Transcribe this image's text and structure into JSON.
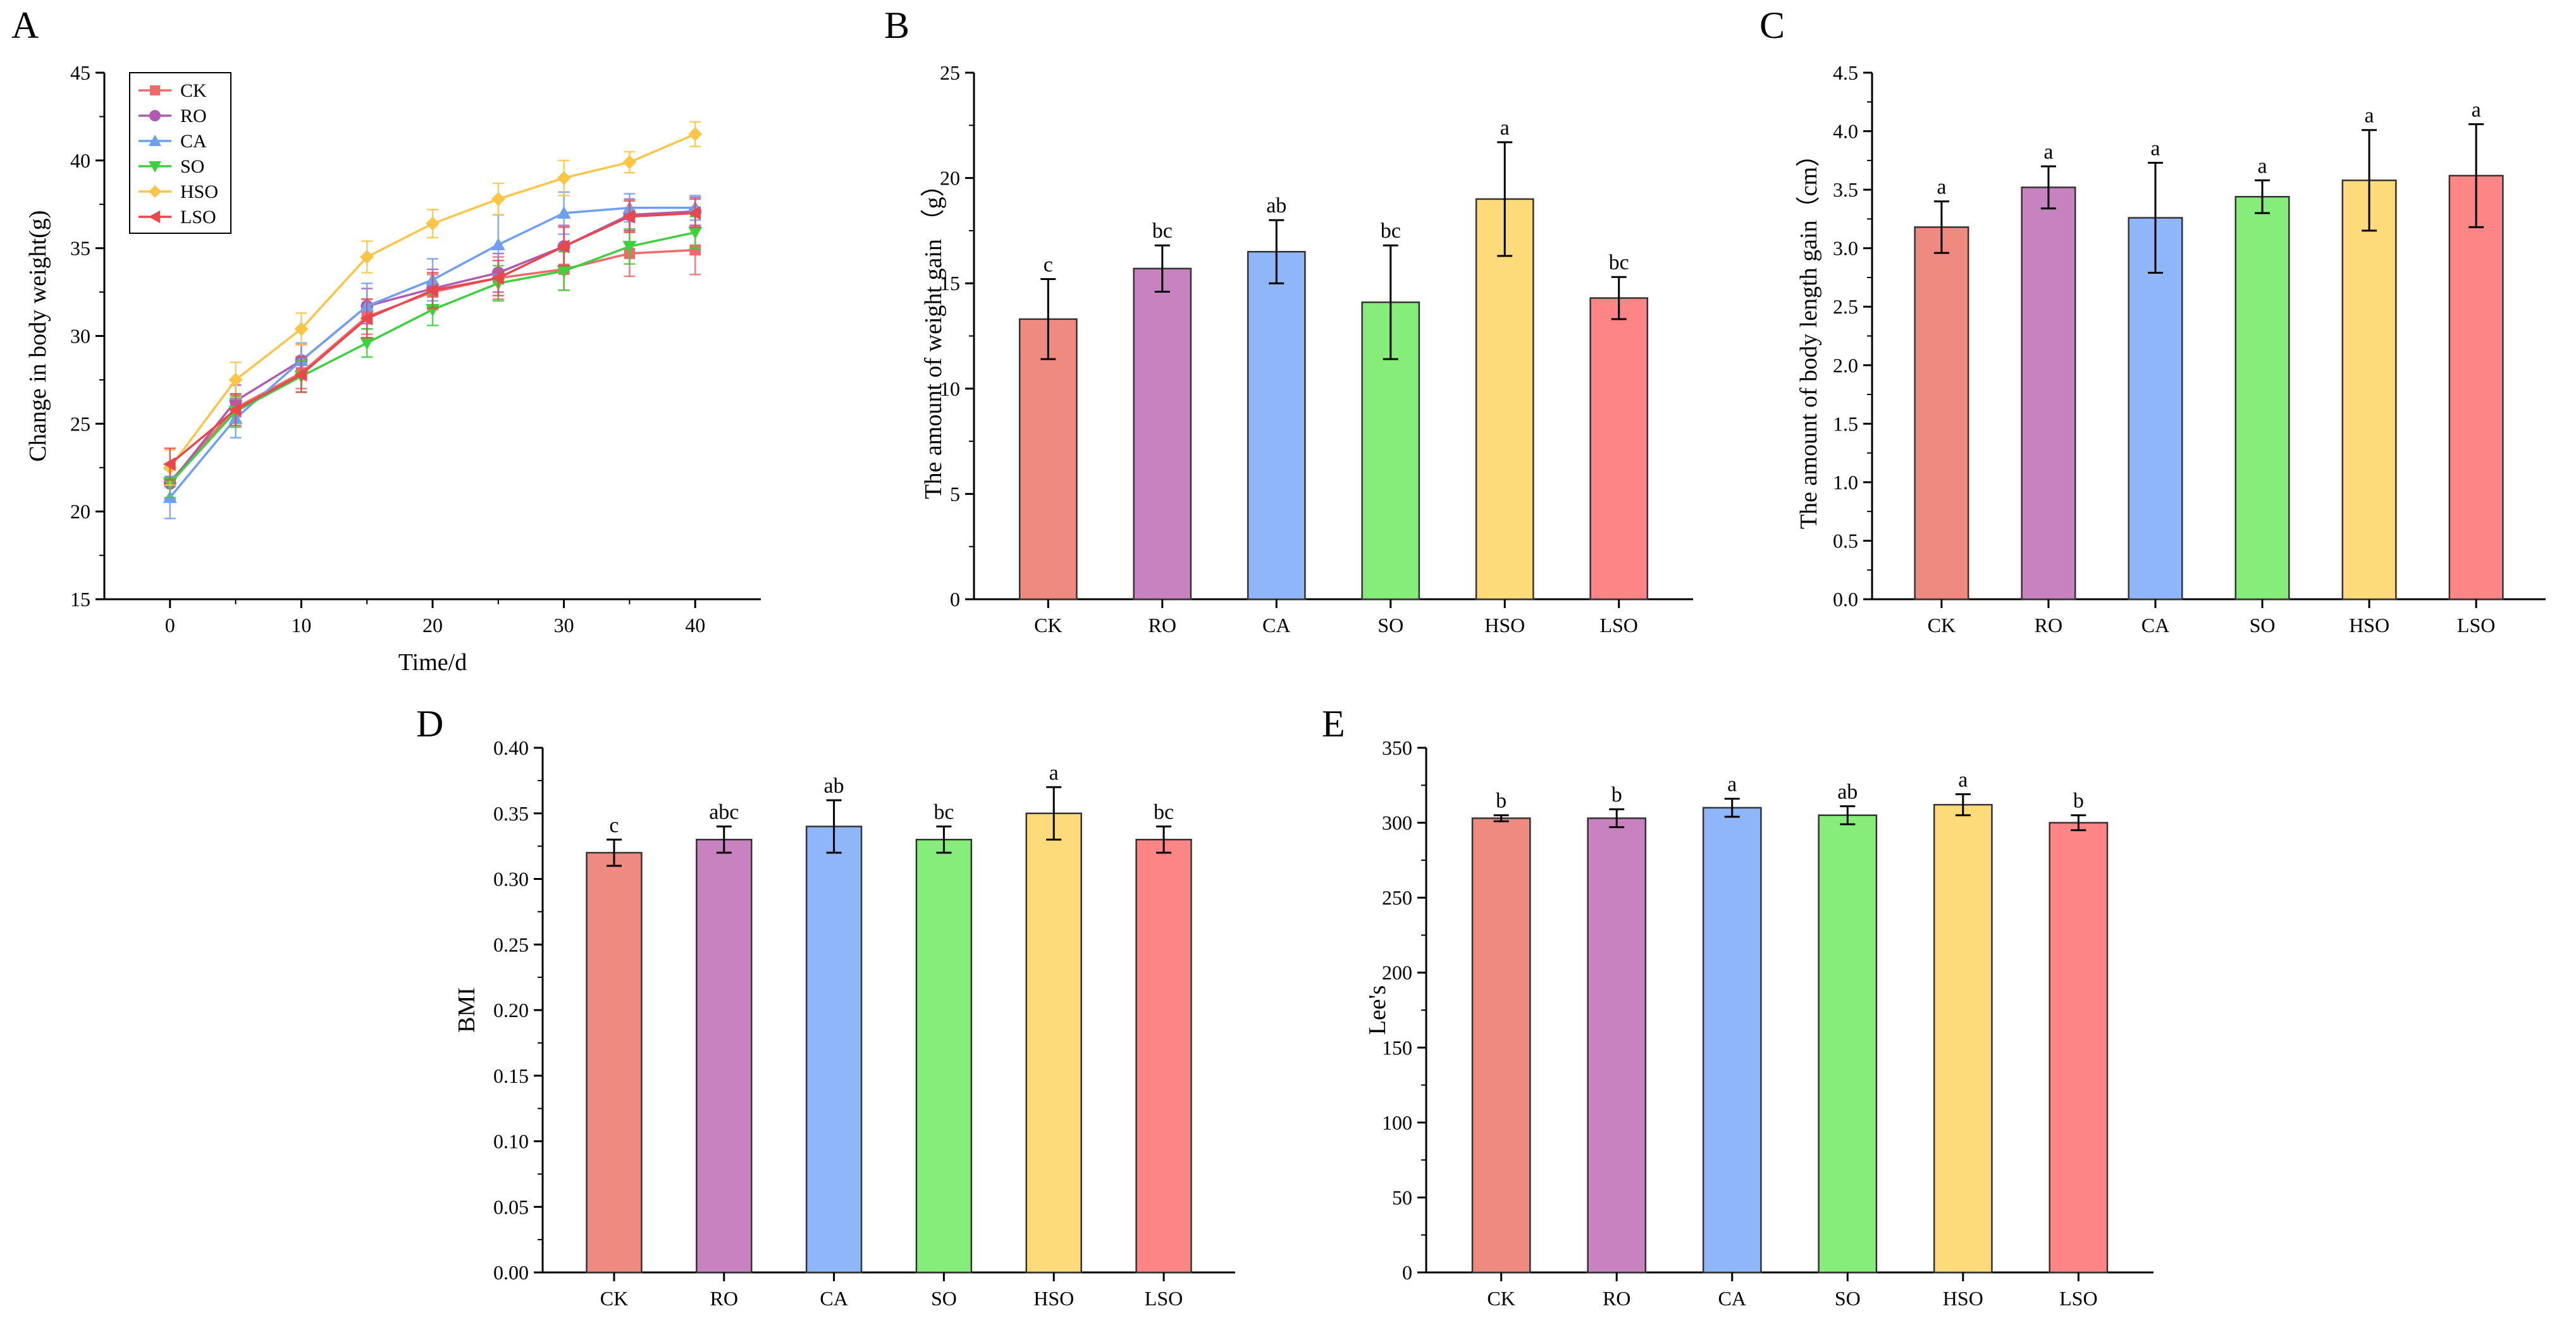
{
  "colors": {
    "CK": "#ef8a80",
    "RO": "#c882c0",
    "CA": "#8fb6f8",
    "SO": "#86ec7a",
    "HSO": "#fddb7a",
    "LSO": "#fe8585",
    "line_CK": "#ef6a6a",
    "line_RO": "#b05ab0",
    "line_CA": "#6fa0ef",
    "line_SO": "#3ed03e",
    "line_HSO": "#fbc548",
    "line_LSO": "#e8484c"
  },
  "chart_data": [
    {
      "id": "A",
      "type": "line",
      "panel_label": "A",
      "xlabel": "Time/d",
      "ylabel": "Change in body weight(g)",
      "xlim": [
        -5,
        45
      ],
      "ylim": [
        15,
        45
      ],
      "xticks": [
        0,
        10,
        20,
        30,
        40
      ],
      "yticks": [
        15,
        20,
        25,
        30,
        35,
        40,
        45
      ],
      "legend": "top-left",
      "x": [
        0,
        5,
        10,
        15,
        20,
        25,
        30,
        35,
        40
      ],
      "series": [
        {
          "name": "CK",
          "marker": "square",
          "values": [
            21.7,
            25.9,
            27.9,
            31.1,
            32.5,
            33.3,
            33.8,
            34.7,
            34.9
          ],
          "errors": [
            1.0,
            0.8,
            0.9,
            1.0,
            1.0,
            1.2,
            1.2,
            1.3,
            1.4
          ]
        },
        {
          "name": "RO",
          "marker": "circle",
          "values": [
            21.6,
            26.3,
            28.6,
            31.7,
            32.7,
            33.6,
            35.1,
            36.9,
            37.1
          ],
          "errors": [
            0.9,
            0.9,
            0.9,
            1.0,
            1.1,
            1.1,
            1.2,
            0.9,
            0.8
          ]
        },
        {
          "name": "CA",
          "marker": "triangle-up",
          "values": [
            20.8,
            25.3,
            28.6,
            31.7,
            33.2,
            35.2,
            37.0,
            37.3,
            37.3
          ],
          "errors": [
            1.2,
            1.1,
            1.0,
            1.3,
            1.2,
            1.7,
            1.2,
            0.8,
            0.7
          ]
        },
        {
          "name": "SO",
          "marker": "triangle-down",
          "values": [
            21.6,
            25.7,
            27.7,
            29.6,
            31.5,
            33.0,
            33.7,
            35.1,
            35.9
          ],
          "errors": [
            0.8,
            0.9,
            0.9,
            0.8,
            0.9,
            1.0,
            1.1,
            1.0,
            0.9
          ]
        },
        {
          "name": "HSO",
          "marker": "diamond",
          "values": [
            22.5,
            27.5,
            30.4,
            34.5,
            36.4,
            37.8,
            39.0,
            39.9,
            41.5
          ],
          "errors": [
            1.0,
            1.0,
            0.9,
            0.9,
            0.8,
            0.9,
            1.0,
            0.6,
            0.7
          ]
        },
        {
          "name": "LSO",
          "marker": "triangle-left",
          "values": [
            22.7,
            25.8,
            27.8,
            31.0,
            32.6,
            33.3,
            35.1,
            36.8,
            37.0
          ],
          "errors": [
            0.9,
            0.9,
            1.0,
            1.1,
            1.0,
            1.0,
            1.1,
            0.9,
            0.8
          ]
        }
      ]
    },
    {
      "id": "B",
      "type": "bar",
      "panel_label": "B",
      "xlabel": "",
      "ylabel": "The amount of weight gain （g）",
      "categories": [
        "CK",
        "RO",
        "CA",
        "SO",
        "HSO",
        "LSO"
      ],
      "values": [
        13.3,
        15.7,
        16.5,
        14.1,
        19.0,
        14.3
      ],
      "errors": [
        1.9,
        1.1,
        1.5,
        2.7,
        2.7,
        1.0
      ],
      "letters": [
        "c",
        "bc",
        "ab",
        "bc",
        "a",
        "bc"
      ],
      "ylim": [
        0,
        25
      ],
      "yticks": [
        0,
        5,
        10,
        15,
        20,
        25
      ]
    },
    {
      "id": "C",
      "type": "bar",
      "panel_label": "C",
      "xlabel": "",
      "ylabel": "The amount of body length gain（cm）",
      "categories": [
        "CK",
        "RO",
        "CA",
        "SO",
        "HSO",
        "LSO"
      ],
      "values": [
        3.18,
        3.52,
        3.26,
        3.44,
        3.58,
        3.62
      ],
      "errors": [
        0.22,
        0.18,
        0.47,
        0.14,
        0.43,
        0.44
      ],
      "letters": [
        "a",
        "a",
        "a",
        "a",
        "a",
        "a"
      ],
      "ylim": [
        0,
        4.5
      ],
      "yticks": [
        "0.0",
        "0.5",
        "1.0",
        "1.5",
        "2.0",
        "2.5",
        "3.0",
        "3.5",
        "4.0",
        "4.5"
      ]
    },
    {
      "id": "D",
      "type": "bar",
      "panel_label": "D",
      "xlabel": "",
      "ylabel": "BMI",
      "categories": [
        "CK",
        "RO",
        "CA",
        "SO",
        "HSO",
        "LSO"
      ],
      "values": [
        0.32,
        0.33,
        0.34,
        0.33,
        0.35,
        0.33
      ],
      "errors": [
        0.01,
        0.01,
        0.02,
        0.01,
        0.02,
        0.01
      ],
      "letters": [
        "c",
        "abc",
        "ab",
        "bc",
        "a",
        "bc"
      ],
      "ylim": [
        0,
        0.4
      ],
      "yticks": [
        "0.00",
        "0.05",
        "0.10",
        "0.15",
        "0.20",
        "0.25",
        "0.30",
        "0.35",
        "0.40"
      ]
    },
    {
      "id": "E",
      "type": "bar",
      "panel_label": "E",
      "xlabel": "",
      "ylabel": "Lee's",
      "categories": [
        "CK",
        "RO",
        "CA",
        "SO",
        "HSO",
        "LSO"
      ],
      "values": [
        303,
        303,
        310,
        305,
        312,
        300
      ],
      "errors": [
        2,
        6,
        6,
        6,
        7,
        5
      ],
      "letters": [
        "b",
        "b",
        "a",
        "ab",
        "a",
        "b"
      ],
      "ylim": [
        0,
        350
      ],
      "yticks": [
        0,
        50,
        100,
        150,
        200,
        250,
        300,
        350
      ]
    }
  ]
}
